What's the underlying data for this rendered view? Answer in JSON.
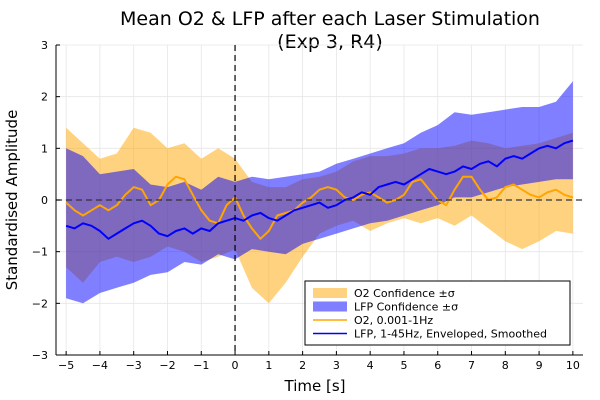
{
  "chart_data": {
    "type": "line",
    "title": "Mean O2 & LFP after each Laser Stimulation",
    "subtitle": "(Exp 3, R4)",
    "xlabel": "Time [s]",
    "ylabel": "Standardised Amplitude",
    "xlim": [
      -5.3,
      10.3
    ],
    "ylim": [
      -3,
      3
    ],
    "xticks": [
      -5,
      -4,
      -3,
      -2,
      -1,
      0,
      1,
      2,
      3,
      4,
      5,
      6,
      7,
      8,
      9,
      10
    ],
    "yticks": [
      -3,
      -2,
      -1,
      0,
      1,
      2,
      3
    ],
    "grid": true,
    "legend_position": "bottom-right",
    "reference_lines": {
      "vertical_x": 0,
      "horizontal_y": 0
    },
    "series": [
      {
        "name": "O2 Confidence ±σ",
        "kind": "band",
        "color": "#ffa500",
        "opacity": 0.5,
        "x": [
          -5,
          -4.5,
          -4,
          -3.5,
          -3,
          -2.5,
          -2,
          -1.5,
          -1,
          -0.5,
          0,
          0.5,
          1,
          1.5,
          2,
          2.5,
          3,
          3.5,
          4,
          4.5,
          5,
          5.5,
          6,
          6.5,
          7,
          7.5,
          8,
          8.5,
          9,
          9.5,
          10
        ],
        "upper": [
          1.4,
          1.1,
          0.8,
          0.9,
          1.4,
          1.3,
          1.0,
          1.1,
          0.8,
          1.0,
          0.8,
          0.35,
          0.25,
          0.25,
          0.4,
          0.45,
          0.55,
          0.75,
          0.85,
          0.85,
          0.9,
          1.0,
          1.0,
          1.05,
          1.15,
          1.1,
          1.0,
          1.05,
          1.1,
          1.2,
          1.3
        ],
        "lower": [
          -1.3,
          -1.6,
          -1.2,
          -1.1,
          -1.2,
          -1.1,
          -0.9,
          -1.0,
          -1.2,
          -1.1,
          -0.95,
          -1.7,
          -2.0,
          -1.6,
          -1.1,
          -0.65,
          -0.5,
          -0.4,
          -0.6,
          -0.45,
          -0.35,
          -0.45,
          -0.35,
          -0.5,
          -0.3,
          -0.55,
          -0.8,
          -0.95,
          -0.8,
          -0.6,
          -0.65
        ]
      },
      {
        "name": "LFP Confidence ±σ",
        "kind": "band",
        "color": "#0000ff",
        "opacity": 0.5,
        "x": [
          -5,
          -4.5,
          -4,
          -3.5,
          -3,
          -2.5,
          -2,
          -1.5,
          -1,
          -0.5,
          0,
          0.5,
          1,
          1.5,
          2,
          2.5,
          3,
          3.5,
          4,
          4.5,
          5,
          5.5,
          6,
          6.5,
          7,
          7.5,
          8,
          8.5,
          9,
          9.5,
          10
        ],
        "upper": [
          1.0,
          0.85,
          0.5,
          0.55,
          0.6,
          0.3,
          0.25,
          0.35,
          0.2,
          0.45,
          0.35,
          0.45,
          0.4,
          0.45,
          0.5,
          0.55,
          0.7,
          0.8,
          0.9,
          1.0,
          1.1,
          1.3,
          1.45,
          1.7,
          1.65,
          1.7,
          1.75,
          1.8,
          1.8,
          1.9,
          2.3
        ],
        "lower": [
          -1.9,
          -2.0,
          -1.8,
          -1.7,
          -1.6,
          -1.45,
          -1.4,
          -1.2,
          -1.25,
          -1.05,
          -1.15,
          -0.95,
          -1.0,
          -1.05,
          -0.85,
          -0.75,
          -0.65,
          -0.55,
          -0.45,
          -0.4,
          -0.3,
          -0.2,
          -0.1,
          0.05,
          0.05,
          0.15,
          0.25,
          0.3,
          0.35,
          0.4,
          0.4
        ]
      },
      {
        "name": "O2, 0.001-1Hz",
        "kind": "line",
        "color": "#ffa500",
        "x": [
          -5,
          -4.75,
          -4.5,
          -4.25,
          -4,
          -3.75,
          -3.5,
          -3.25,
          -3,
          -2.75,
          -2.5,
          -2.25,
          -2,
          -1.75,
          -1.5,
          -1.25,
          -1,
          -0.75,
          -0.5,
          -0.25,
          0,
          0.25,
          0.5,
          0.75,
          1,
          1.25,
          1.5,
          1.75,
          2,
          2.25,
          2.5,
          2.75,
          3,
          3.25,
          3.5,
          3.75,
          4,
          4.25,
          4.5,
          4.75,
          5,
          5.25,
          5.5,
          5.75,
          6,
          6.25,
          6.5,
          6.75,
          7,
          7.25,
          7.5,
          7.75,
          8,
          8.25,
          8.5,
          8.75,
          9,
          9.25,
          9.5,
          9.75,
          10
        ],
        "values": [
          -0.05,
          -0.2,
          -0.3,
          -0.2,
          -0.1,
          -0.2,
          -0.1,
          0.1,
          0.25,
          0.2,
          -0.1,
          0.0,
          0.3,
          0.45,
          0.4,
          0.1,
          -0.2,
          -0.4,
          -0.45,
          -0.1,
          0.05,
          -0.3,
          -0.55,
          -0.75,
          -0.6,
          -0.3,
          -0.25,
          -0.2,
          -0.05,
          0.05,
          0.2,
          0.25,
          0.2,
          0.05,
          0.0,
          0.1,
          0.15,
          0.05,
          -0.05,
          0.0,
          0.1,
          0.35,
          0.4,
          0.2,
          0.0,
          -0.1,
          0.2,
          0.45,
          0.45,
          0.2,
          0.0,
          0.05,
          0.25,
          0.3,
          0.2,
          0.1,
          0.05,
          0.15,
          0.2,
          0.1,
          0.05
        ]
      },
      {
        "name": "LFP, 1-45Hz, Enveloped, Smoothed",
        "kind": "line",
        "color": "#0000ff",
        "x": [
          -5,
          -4.75,
          -4.5,
          -4.25,
          -4,
          -3.75,
          -3.5,
          -3.25,
          -3,
          -2.75,
          -2.5,
          -2.25,
          -2,
          -1.75,
          -1.5,
          -1.25,
          -1,
          -0.75,
          -0.5,
          -0.25,
          0,
          0.25,
          0.5,
          0.75,
          1,
          1.25,
          1.5,
          1.75,
          2,
          2.25,
          2.5,
          2.75,
          3,
          3.25,
          3.5,
          3.75,
          4,
          4.25,
          4.5,
          4.75,
          5,
          5.25,
          5.5,
          5.75,
          6,
          6.25,
          6.5,
          6.75,
          7,
          7.25,
          7.5,
          7.75,
          8,
          8.25,
          8.5,
          8.75,
          9,
          9.25,
          9.5,
          9.75,
          10
        ],
        "values": [
          -0.5,
          -0.55,
          -0.45,
          -0.5,
          -0.6,
          -0.75,
          -0.65,
          -0.55,
          -0.45,
          -0.4,
          -0.5,
          -0.65,
          -0.7,
          -0.6,
          -0.55,
          -0.65,
          -0.55,
          -0.6,
          -0.45,
          -0.4,
          -0.35,
          -0.4,
          -0.3,
          -0.25,
          -0.35,
          -0.4,
          -0.3,
          -0.2,
          -0.15,
          -0.1,
          -0.05,
          -0.15,
          -0.1,
          0.0,
          0.05,
          0.15,
          0.1,
          0.25,
          0.3,
          0.35,
          0.3,
          0.4,
          0.5,
          0.6,
          0.55,
          0.5,
          0.55,
          0.65,
          0.6,
          0.7,
          0.75,
          0.65,
          0.8,
          0.85,
          0.8,
          0.9,
          1.0,
          1.05,
          1.0,
          1.1,
          1.15
        ]
      }
    ]
  }
}
